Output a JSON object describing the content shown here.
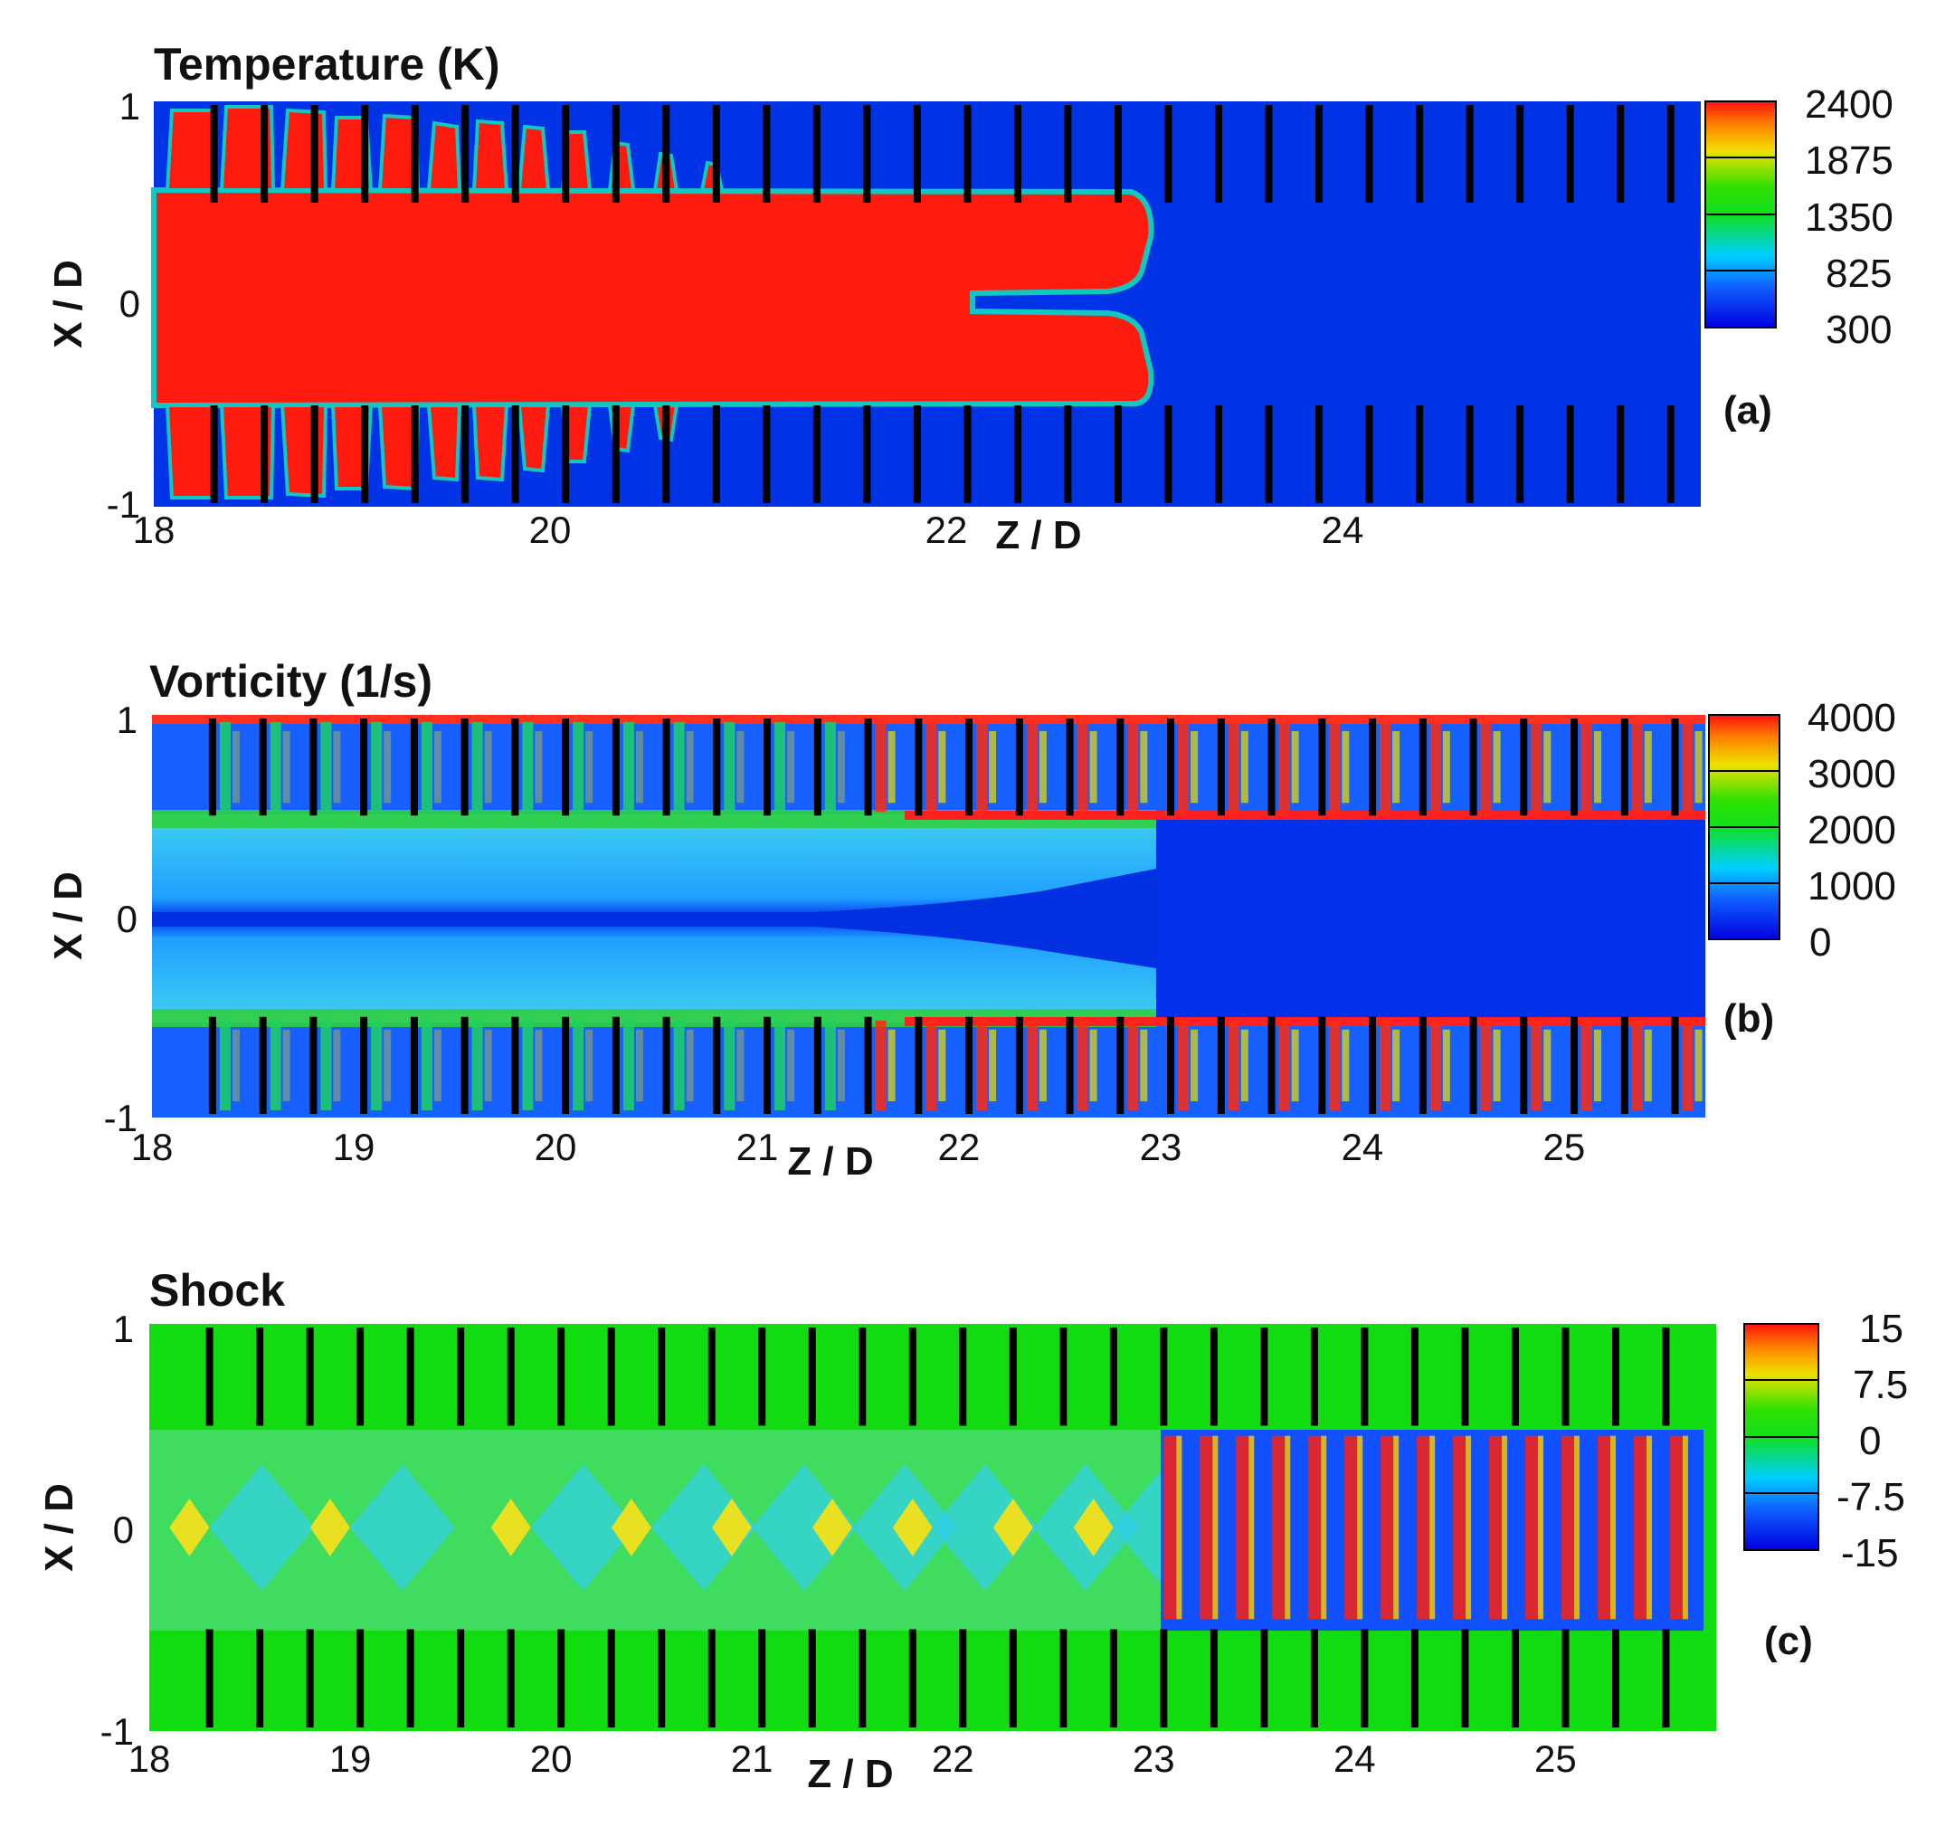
{
  "figure": {
    "panels": [
      {
        "id": "a",
        "title": "Temperature (K)",
        "panel_label": "(a)",
        "xlabel": "Z / D",
        "ylabel": "X / D",
        "x_ticks": [
          "18",
          "20",
          "22",
          "24"
        ],
        "y_ticks": [
          "1",
          "0",
          "-1"
        ],
        "colorbar_ticks": [
          "2400",
          "1875",
          "1350",
          "825",
          "300"
        ]
      },
      {
        "id": "b",
        "title": "Vorticity (1/s)",
        "panel_label": "(b)",
        "xlabel": "Z / D",
        "ylabel": "X / D",
        "x_ticks": [
          "18",
          "19",
          "20",
          "21",
          "22",
          "23",
          "24",
          "25"
        ],
        "y_ticks": [
          "1",
          "0",
          "-1"
        ],
        "colorbar_ticks": [
          "4000",
          "3000",
          "2000",
          "1000",
          "0"
        ]
      },
      {
        "id": "c",
        "title": "Shock",
        "panel_label": "(c)",
        "xlabel": "Z / D",
        "ylabel": "X / D",
        "x_ticks": [
          "18",
          "19",
          "20",
          "21",
          "22",
          "23",
          "24",
          "25"
        ],
        "y_ticks": [
          "1",
          "0",
          "-1"
        ],
        "colorbar_ticks": [
          "15",
          "7.5",
          "0",
          "-7.5",
          "-15"
        ]
      }
    ]
  },
  "chart_data": [
    {
      "type": "heatmap",
      "title": "Temperature (K)",
      "xlabel": "Z / D",
      "ylabel": "X / D",
      "xlim": [
        18,
        25.7
      ],
      "ylim": [
        -1,
        1
      ],
      "x_ticks": [
        18,
        20,
        22,
        24
      ],
      "y_ticks": [
        -1,
        0,
        1
      ],
      "colorbar": {
        "min": 300,
        "max": 2400,
        "ticks": [
          300,
          825,
          1350,
          1875,
          2400
        ]
      },
      "obstacles": {
        "z_start": 18.3,
        "z_step": 0.25,
        "count": 30,
        "x_extent": 0.5
      },
      "features": {
        "hot_core_end_z": 22.95,
        "hot_core_half_width": 0.5,
        "ambient_value": 300,
        "burned_value": 2400
      },
      "grid": false,
      "legend": "right"
    },
    {
      "type": "heatmap",
      "title": "Vorticity (1/s)",
      "xlabel": "Z / D",
      "ylabel": "X / D",
      "xlim": [
        18,
        25.7
      ],
      "ylim": [
        -1,
        1
      ],
      "x_ticks": [
        18,
        19,
        20,
        21,
        22,
        23,
        24,
        25
      ],
      "y_ticks": [
        -1,
        0,
        1
      ],
      "colorbar": {
        "min": 0,
        "max": 4000,
        "ticks": [
          0,
          1000,
          2000,
          3000,
          4000
        ]
      },
      "obstacles": {
        "z_start": 18.3,
        "z_step": 0.25,
        "count": 30,
        "x_extent": 0.5
      },
      "features": {
        "front_z": 23.0
      },
      "grid": false,
      "legend": "right"
    },
    {
      "type": "heatmap",
      "title": "Shock",
      "xlabel": "Z / D",
      "ylabel": "X / D",
      "xlim": [
        18,
        25.8
      ],
      "ylim": [
        -1,
        1
      ],
      "x_ticks": [
        18,
        19,
        20,
        21,
        22,
        23,
        24,
        25
      ],
      "y_ticks": [
        -1,
        0,
        1
      ],
      "colorbar": {
        "min": -15,
        "max": 15,
        "ticks": [
          -15,
          -7.5,
          0,
          7.5,
          15
        ]
      },
      "obstacles": {
        "z_start": 18.3,
        "z_step": 0.25,
        "count": 30,
        "x_extent": 0.5
      },
      "features": {
        "front_z": 23.0
      },
      "grid": false,
      "legend": "right"
    }
  ]
}
